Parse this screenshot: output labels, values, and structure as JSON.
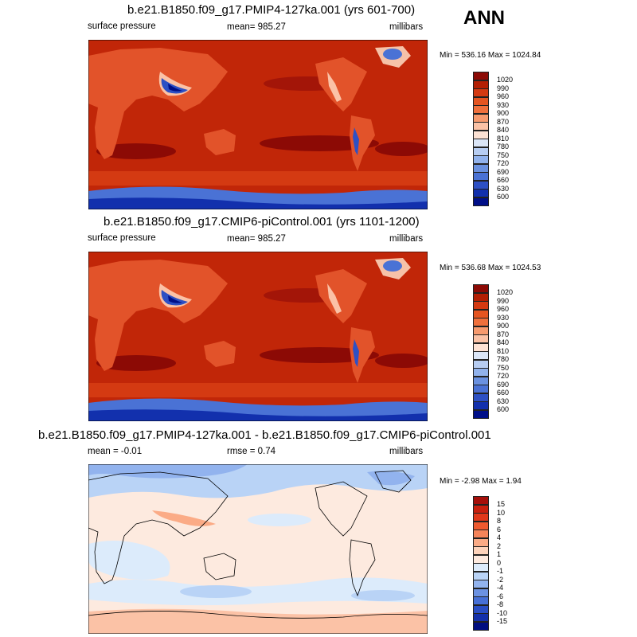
{
  "season": "ANN",
  "panels": [
    {
      "title": "b.e21.B1850.f09_g17.PMIP4-127ka.001 (yrs 601-700)",
      "left_label": "surface pressure",
      "mid_label": "mean= 985.27",
      "units": "millibars",
      "minmax": "Min = 536.16 Max = 1024.84",
      "colorbar_levels": [
        "1020",
        "990",
        "960",
        "930",
        "900",
        "870",
        "840",
        "810",
        "780",
        "750",
        "720",
        "690",
        "660",
        "630",
        "600"
      ],
      "colors": [
        "#8c0a05",
        "#b31f04",
        "#d43a12",
        "#e55521",
        "#f0703c",
        "#f79a6e",
        "#fbc2a6",
        "#fde2d4",
        "#dbe6f7",
        "#b7cdf2",
        "#91b2ec",
        "#6a91e0",
        "#4a72d5",
        "#2d50c4",
        "#1230ad",
        "#000f88"
      ]
    },
    {
      "title": "b.e21.B1850.f09_g17.CMIP6-piControl.001 (yrs 1101-1200)",
      "left_label": "surface pressure",
      "mid_label": "mean= 985.27",
      "units": "millibars",
      "minmax": "Min = 536.68 Max = 1024.53",
      "colorbar_levels": [
        "1020",
        "990",
        "960",
        "930",
        "900",
        "870",
        "840",
        "810",
        "780",
        "750",
        "720",
        "690",
        "660",
        "630",
        "600"
      ],
      "colors": [
        "#8c0a05",
        "#b31f04",
        "#d43a12",
        "#e55521",
        "#f0703c",
        "#f79a6e",
        "#fbc2a6",
        "#fde2d4",
        "#dbe6f7",
        "#b7cdf2",
        "#91b2ec",
        "#6a91e0",
        "#4a72d5",
        "#2d50c4",
        "#1230ad",
        "#000f88"
      ]
    },
    {
      "title": "b.e21.B1850.f09_g17.PMIP4-127ka.001 - b.e21.B1850.f09_g17.CMIP6-piControl.001",
      "left_label": "mean =  -0.01",
      "mid_label": "rmse =   0.74",
      "units": "millibars",
      "minmax": "Min =  -2.98 Max =   1.94",
      "colorbar_levels": [
        "15",
        "10",
        "8",
        "6",
        "4",
        "2",
        "1",
        "0",
        "-1",
        "-2",
        "-4",
        "-6",
        "-8",
        "-10",
        "-15"
      ],
      "colors": [
        "#a50f0a",
        "#c8200e",
        "#e0381a",
        "#ee5a30",
        "#f6845a",
        "#fbab86",
        "#fdd3bb",
        "#fdeadf",
        "#dcebfb",
        "#b9d3f6",
        "#92b3ee",
        "#6c92e2",
        "#4770d6",
        "#2a4ec4",
        "#1430aa",
        "#000e80"
      ]
    }
  ]
}
